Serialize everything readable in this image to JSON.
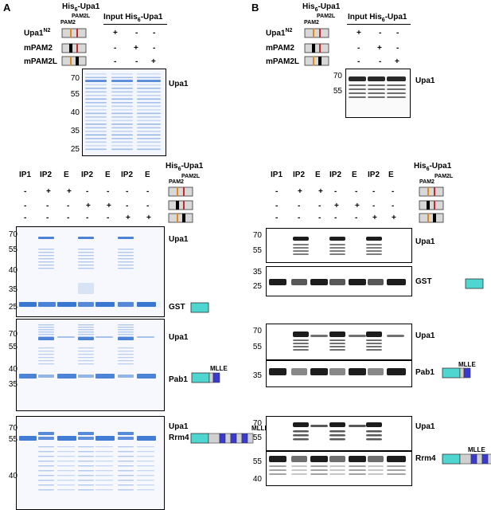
{
  "panels": {
    "a": "A",
    "b": "B"
  },
  "his_upa1": "His",
  "his_sub": "6",
  "his_suffix": "-Upa1",
  "pam2": "PAM2",
  "pam2l": "PAM2L",
  "input_title": "Input His",
  "input_sub": "6",
  "input_suffix": "-Upa1",
  "constructs": [
    {
      "name": "Upa1",
      "sup": "N2",
      "signs": [
        "+",
        "-",
        "-"
      ]
    },
    {
      "name": "mPAM2",
      "sup": "",
      "signs": [
        "-",
        "+",
        "-"
      ]
    },
    {
      "name": "mPAM2L",
      "sup": "",
      "signs": [
        "-",
        "-",
        "+"
      ]
    }
  ],
  "lanes": [
    "IP1",
    "IP2",
    "E",
    "IP2",
    "E",
    "IP2",
    "E"
  ],
  "lane_signs": [
    [
      "-",
      "+",
      "+",
      "-",
      "-",
      "-",
      "-"
    ],
    [
      "-",
      "-",
      "-",
      "+",
      "+",
      "-",
      "-"
    ],
    [
      "-",
      "-",
      "-",
      "-",
      "-",
      "+",
      "+"
    ]
  ],
  "input_mw_a": [
    "70",
    "55",
    "40",
    "35",
    "25"
  ],
  "input_mw_b": [
    "70",
    "55"
  ],
  "gel_labels": {
    "upa1": "Upa1",
    "gst": "GST",
    "pab1": "Pab1",
    "rrm4": "Rrm4",
    "mlle": "MLLE"
  },
  "mw": {
    "a1": [
      "70",
      "55",
      "40",
      "35",
      "25"
    ],
    "a2": [
      "70",
      "55",
      "40",
      "35"
    ],
    "a3": [
      "70",
      "55",
      "40"
    ],
    "b1a": [
      "70",
      "55"
    ],
    "b1b": [
      "35",
      "25"
    ],
    "b2a": [
      "70",
      "55"
    ],
    "b2b": [
      "35"
    ],
    "b3a": [
      "70",
      "55"
    ],
    "b3b": [
      "55",
      "40"
    ]
  },
  "colors": {
    "coomassie": "#2f6fd0",
    "gst_box": "#4fd6d0",
    "mlle_box": "#3a3ad0",
    "pam2_orange": "#e08a1e",
    "pam2l_red": "#c0282a"
  }
}
